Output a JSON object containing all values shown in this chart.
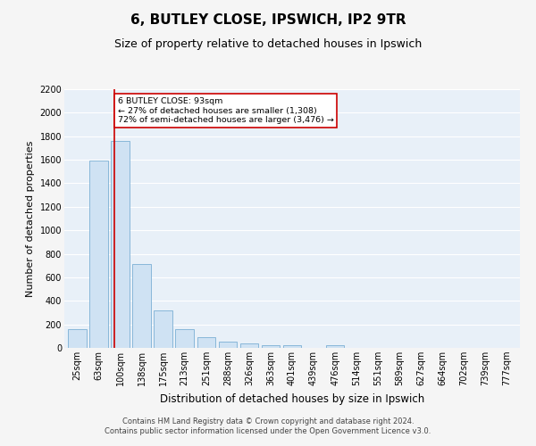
{
  "title": "6, BUTLEY CLOSE, IPSWICH, IP2 9TR",
  "subtitle": "Size of property relative to detached houses in Ipswich",
  "xlabel": "Distribution of detached houses by size in Ipswich",
  "ylabel": "Number of detached properties",
  "bar_labels": [
    "25sqm",
    "63sqm",
    "100sqm",
    "138sqm",
    "175sqm",
    "213sqm",
    "251sqm",
    "288sqm",
    "326sqm",
    "363sqm",
    "401sqm",
    "439sqm",
    "476sqm",
    "514sqm",
    "551sqm",
    "589sqm",
    "627sqm",
    "664sqm",
    "702sqm",
    "739sqm",
    "777sqm"
  ],
  "bar_values": [
    160,
    1590,
    1760,
    710,
    315,
    160,
    90,
    55,
    35,
    20,
    20,
    0,
    20,
    0,
    0,
    0,
    0,
    0,
    0,
    0,
    0
  ],
  "bar_color": "#cfe2f3",
  "bar_edge_color": "#7bafd4",
  "background_color": "#e8f0f8",
  "grid_color": "#ffffff",
  "vline_color": "#cc0000",
  "annotation_text": "6 BUTLEY CLOSE: 93sqm\n← 27% of detached houses are smaller (1,308)\n72% of semi-detached houses are larger (3,476) →",
  "annotation_box_color": "#ffffff",
  "annotation_box_edge": "#cc0000",
  "ylim": [
    0,
    2200
  ],
  "yticks": [
    0,
    200,
    400,
    600,
    800,
    1000,
    1200,
    1400,
    1600,
    1800,
    2000,
    2200
  ],
  "footer": "Contains HM Land Registry data © Crown copyright and database right 2024.\nContains public sector information licensed under the Open Government Licence v3.0.",
  "title_fontsize": 11,
  "subtitle_fontsize": 9,
  "xlabel_fontsize": 8.5,
  "ylabel_fontsize": 8,
  "tick_fontsize": 7,
  "footer_fontsize": 6
}
